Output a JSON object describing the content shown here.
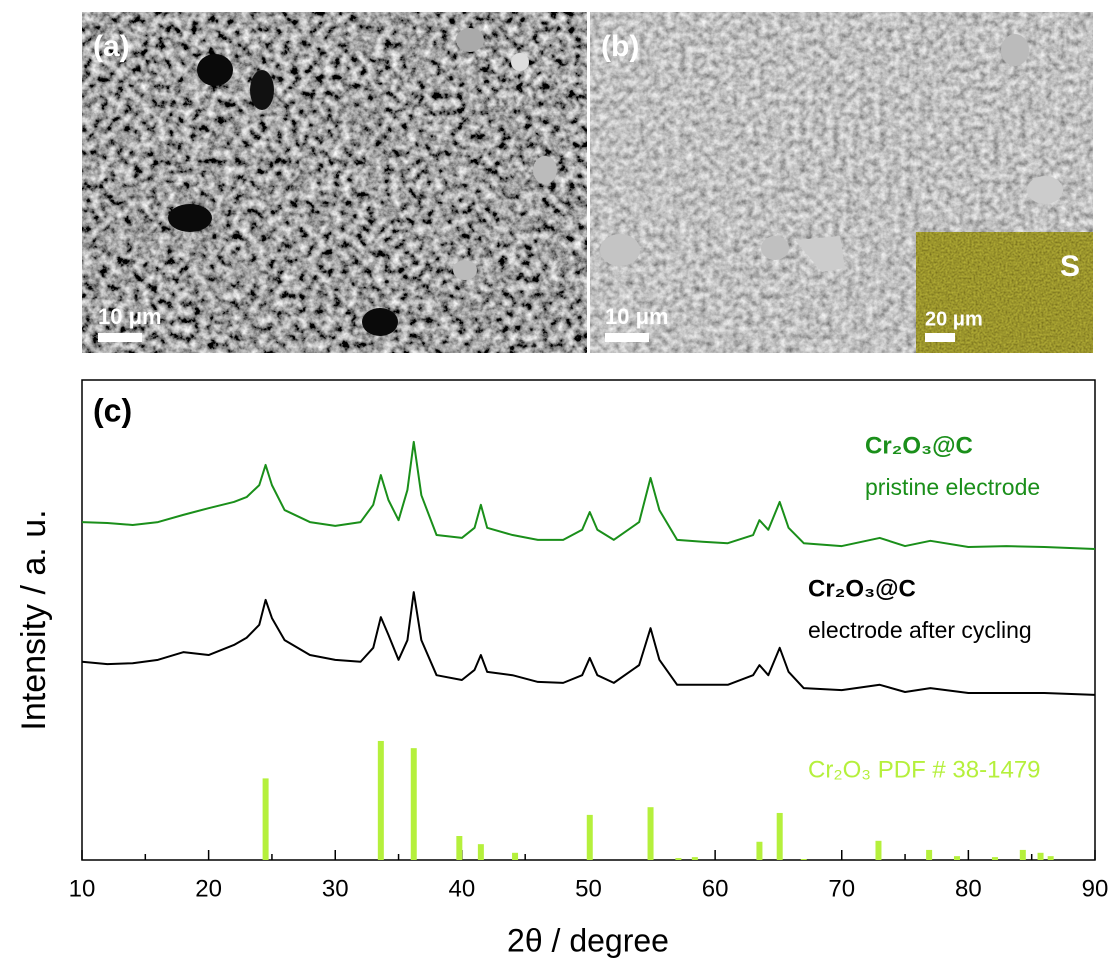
{
  "panels": [
    {
      "label": "(a)",
      "scale_bar": "10 μm"
    },
    {
      "label": "(b)",
      "scale_bar": "10 μm",
      "inset": {
        "label": "S",
        "scale_bar": "20 μm"
      }
    }
  ],
  "chart_data": {
    "type": "line",
    "panel_label": "(c)",
    "xlabel": "2θ / degree",
    "ylabel": "Intensity / a. u.",
    "xlim": [
      10,
      90
    ],
    "xticks": [
      10,
      20,
      30,
      40,
      50,
      60,
      70,
      80,
      90
    ],
    "ylim": [
      0,
      100
    ],
    "x": [
      10,
      12,
      14,
      16,
      18,
      20,
      22,
      23,
      24,
      24.5,
      25,
      26,
      28,
      30,
      32,
      33,
      33.6,
      34.2,
      35,
      35.7,
      36.2,
      36.8,
      38,
      40,
      41,
      41.5,
      42,
      44,
      46,
      48,
      49.5,
      50.1,
      50.7,
      52,
      54,
      54.9,
      55.6,
      57,
      59,
      61,
      63,
      63.5,
      64.2,
      65.1,
      65.8,
      67,
      70,
      73,
      75,
      77,
      80,
      83,
      86,
      90
    ],
    "series": [
      {
        "name": "Cr₂O₃@C",
        "description": "pristine electrode",
        "color": "#1a8f1a",
        "values": [
          70.4,
          70.2,
          69.8,
          70.4,
          71.9,
          73.3,
          74.6,
          75.6,
          78.1,
          82.3,
          78.1,
          72.9,
          70.4,
          69.6,
          70.4,
          74,
          80.2,
          75,
          70.8,
          77.1,
          87.1,
          76,
          67.7,
          67.1,
          69.2,
          74,
          69.2,
          67.7,
          66.7,
          66.7,
          68.8,
          72.5,
          68.8,
          66.7,
          70.4,
          79.6,
          72.9,
          66.7,
          66.3,
          66,
          67.7,
          70.8,
          68.8,
          74.6,
          69.2,
          66,
          65.4,
          67.1,
          65.4,
          66.5,
          65.2,
          65.4,
          65.2,
          64.8
        ]
      },
      {
        "name": "Cr₂O₃@C",
        "description": "electrode after cycling",
        "color": "#000000",
        "values": [
          41.3,
          40.8,
          41,
          41.7,
          43.3,
          42.7,
          44.8,
          46.3,
          49,
          54.2,
          50.4,
          45.8,
          42.7,
          41.7,
          41.3,
          44.2,
          50.6,
          46.9,
          41.7,
          45.8,
          55.8,
          45.8,
          38.5,
          37.5,
          39.6,
          42.7,
          39.2,
          38.5,
          37.1,
          36.9,
          38.5,
          42.1,
          38.5,
          36.9,
          40.6,
          48.3,
          41.7,
          36.5,
          36.5,
          36.5,
          38.5,
          40.6,
          38.5,
          44.2,
          39.2,
          35.8,
          35.4,
          36.5,
          35,
          35.8,
          34.8,
          34.8,
          34.8,
          34.4
        ]
      },
      {
        "name": "Cr₂O₃ PDF # 38-1479",
        "type": "stick",
        "color": "#b5f03c",
        "x": [
          24.5,
          33.6,
          36.2,
          39.8,
          41.5,
          44.2,
          50.1,
          54.9,
          57.1,
          58.4,
          63.5,
          65.1,
          67.0,
          72.9,
          76.9,
          79.1,
          82.1,
          84.3,
          85.7,
          86.5
        ],
        "values": [
          17,
          24.8,
          23.3,
          5,
          3.3,
          1.5,
          9.4,
          11,
          0.4,
          0.6,
          3.8,
          9.8,
          0.2,
          4,
          2.1,
          0.8,
          0.6,
          2.1,
          1.5,
          0.8
        ]
      }
    ]
  }
}
